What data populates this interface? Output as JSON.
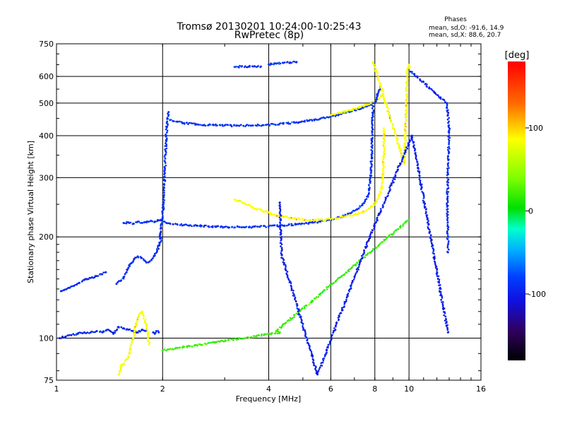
{
  "chart_data": {
    "type": "scatter",
    "title": "Tromsø 20130201 10:24:00-10:25:43",
    "subtitle": "RwPretec (8p)",
    "xlabel": "Frequency [MHz]",
    "ylabel": "Stationary phase Virtual Height [km]",
    "x_scale": "log",
    "y_scale": "log",
    "xlim": [
      1,
      16
    ],
    "ylim": [
      75,
      750
    ],
    "x_ticks": [
      "1",
      "2",
      "4",
      "6",
      "8",
      "10",
      "16"
    ],
    "x_tick_values": [
      1,
      2,
      4,
      6,
      8,
      10,
      16
    ],
    "y_ticks": [
      "75",
      "100",
      "200",
      "300",
      "400",
      "500",
      "600",
      "750"
    ],
    "y_tick_values": [
      75,
      100,
      200,
      300,
      400,
      500,
      600,
      750
    ],
    "grid": true,
    "phase_legend": {
      "title": "Phases",
      "line1": "mean, sd,O: -91.6, 14.9",
      "line2": "mean, sd,X:  88.6, 20.7"
    },
    "colorbar": {
      "label": "[deg]",
      "ticks": [
        "100",
        "0",
        "-100"
      ],
      "tick_values": [
        100,
        0,
        -100
      ],
      "range": [
        -180,
        180
      ]
    },
    "traces": [
      {
        "phase": -95,
        "x": [
          1.03,
          1.05,
          1.08,
          1.12,
          1.16,
          1.2,
          1.25,
          1.3,
          1.34,
          1.38
        ],
        "y": [
          138,
          139,
          141,
          143,
          146,
          149,
          151,
          153,
          155,
          157
        ]
      },
      {
        "phase": -95,
        "x": [
          1.02,
          1.06,
          1.1,
          1.15,
          1.2,
          1.25,
          1.3,
          1.35,
          1.4,
          1.45,
          1.5,
          1.55,
          1.6,
          1.65,
          1.7,
          1.75,
          1.8
        ],
        "y": [
          100,
          101,
          102,
          103,
          104,
          104,
          105,
          104,
          106,
          103,
          108,
          107,
          106,
          105,
          104,
          106,
          105
        ]
      },
      {
        "phase": -92,
        "x": [
          1.48,
          1.52,
          1.55,
          1.58,
          1.6,
          1.63,
          1.66,
          1.7,
          1.74,
          1.78,
          1.82,
          1.86,
          1.9,
          1.93,
          1.96,
          1.98
        ],
        "y": [
          145,
          148,
          152,
          157,
          162,
          167,
          172,
          175,
          173,
          170,
          168,
          171,
          176,
          182,
          190,
          198
        ]
      },
      {
        "phase": -90,
        "x": [
          1.55,
          1.6,
          1.65,
          1.7,
          1.75,
          1.8,
          1.85,
          1.9,
          1.95,
          1.98
        ],
        "y": [
          220,
          221,
          219,
          222,
          220,
          221,
          223,
          222,
          224,
          225
        ]
      },
      {
        "phase": -92,
        "x": [
          1.96,
          1.98,
          2.0,
          2.01,
          2.02,
          2.03,
          2.04,
          2.05,
          2.06,
          2.08
        ],
        "y": [
          200,
          212,
          228,
          250,
          280,
          320,
          360,
          400,
          440,
          470
        ]
      },
      {
        "phase": -90,
        "x": [
          2.02,
          2.05,
          2.1,
          2.2,
          2.3,
          2.5,
          2.7,
          3.0,
          3.3,
          3.6,
          4.0,
          4.4,
          4.8,
          5.2,
          5.6,
          6.0,
          6.4,
          6.8,
          7.2,
          7.5,
          7.7
        ],
        "y": [
          222,
          220,
          219,
          218,
          217,
          216,
          215,
          214,
          214,
          214,
          215,
          216,
          218,
          220,
          222,
          225,
          229,
          235,
          243,
          255,
          270
        ]
      },
      {
        "phase": -90,
        "x": [
          7.7,
          7.75,
          7.8,
          7.82,
          7.84,
          7.85,
          7.86,
          7.87,
          7.88,
          7.89,
          7.9
        ],
        "y": [
          275,
          290,
          310,
          330,
          350,
          370,
          390,
          410,
          430,
          460,
          490
        ]
      },
      {
        "phase": -90,
        "x": [
          2.1,
          2.2,
          2.3,
          2.5,
          2.7,
          3.0,
          3.3,
          3.6,
          4.0,
          4.4,
          4.8,
          5.2,
          5.6,
          6.0,
          6.4,
          6.8,
          7.2,
          7.6,
          7.9
        ],
        "y": [
          445,
          440,
          436,
          432,
          430,
          429,
          428,
          429,
          431,
          434,
          438,
          443,
          449,
          456,
          464,
          472,
          480,
          490,
          500
        ]
      },
      {
        "phase": 95,
        "x": [
          3.2,
          3.4,
          3.6,
          3.9,
          4.2,
          4.6,
          5.0,
          5.4,
          5.8,
          6.2,
          6.6,
          7.0,
          7.4,
          7.8,
          8.1,
          8.3,
          8.4,
          8.45,
          8.5,
          8.5,
          8.48
        ],
        "y": [
          258,
          252,
          245,
          238,
          232,
          228,
          225,
          224,
          225,
          227,
          230,
          233,
          237,
          245,
          255,
          270,
          290,
          320,
          360,
          400,
          420
        ]
      },
      {
        "phase": 90,
        "x": [
          6.0,
          6.4,
          6.8,
          7.2,
          7.6,
          8.0,
          8.2,
          8.4
        ],
        "y": [
          460,
          468,
          476,
          484,
          494,
          505,
          515,
          530
        ]
      },
      {
        "phase": -90,
        "x": [
          3.2,
          3.35,
          3.5,
          3.65,
          3.8
        ],
        "y": [
          640,
          642,
          641,
          643,
          642
        ]
      },
      {
        "phase": -90,
        "x": [
          4.0,
          4.2,
          4.4,
          4.6,
          4.8
        ],
        "y": [
          652,
          655,
          658,
          660,
          662
        ]
      },
      {
        "phase": 90,
        "x": [
          1.5,
          1.52,
          1.6,
          1.65,
          1.7,
          1.72,
          1.75,
          1.8,
          1.83
        ],
        "y": [
          78,
          82,
          88,
          100,
          115,
          118,
          120,
          110,
          96
        ]
      },
      {
        "phase": -95,
        "x": [
          1.88,
          1.9,
          1.92,
          1.95
        ],
        "y": [
          104,
          103,
          105,
          104
        ]
      },
      {
        "phase": -90,
        "x": [
          8.0,
          8.05,
          8.1,
          8.15,
          8.2,
          8.3
        ],
        "y": [
          500,
          510,
          520,
          530,
          540,
          560
        ]
      },
      {
        "phase": 92,
        "x": [
          10.0,
          10.05,
          9.9,
          9.7,
          8.0,
          7.9
        ],
        "y": [
          650,
          640,
          630,
          330,
          640,
          660
        ]
      },
      {
        "phase": -95,
        "x": [
          10.1,
          12.8,
          12.9,
          13.0,
          12.85,
          12.9
        ],
        "y": [
          620,
          500,
          460,
          415,
          260,
          180
        ]
      },
      {
        "phase": 20,
        "x": [
          10.0,
          4.2,
          4.3,
          2.0
        ],
        "y": [
          225,
          105,
          104,
          92
        ]
      },
      {
        "phase": -100,
        "x": [
          4.3,
          4.35,
          5.5,
          7.7,
          10.2,
          12.9
        ],
        "y": [
          253,
          177,
          78,
          197,
          400,
          104
        ]
      }
    ]
  }
}
